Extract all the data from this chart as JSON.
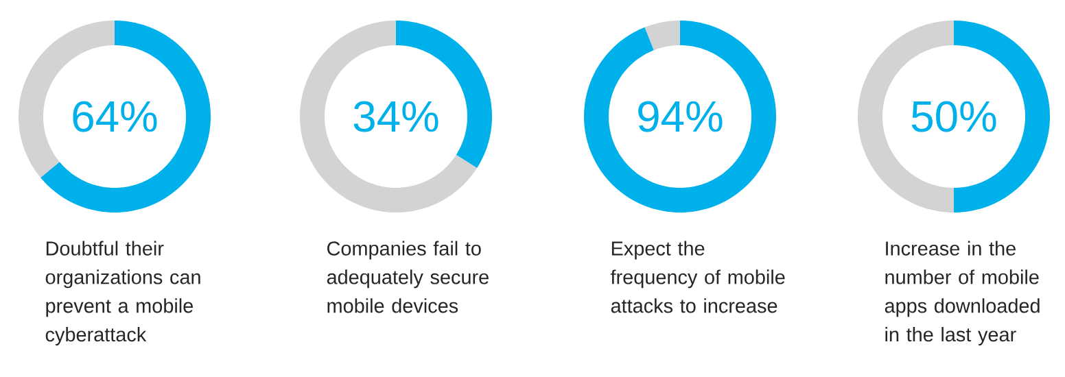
{
  "chart_data": [
    {
      "type": "donut",
      "categories": [
        null,
        null
      ],
      "values": [
        64,
        36
      ],
      "colors": [
        "#00b0ea",
        "#d3d3d3"
      ],
      "value_labels": [
        "64%",
        null
      ],
      "annotations": [
        "Doubtful their organizations can prevent a mobile cyberattack"
      ]
    },
    {
      "type": "donut",
      "categories": [
        null,
        null
      ],
      "values": [
        34,
        66
      ],
      "colors": [
        "#00b0ea",
        "#d3d3d3"
      ],
      "value_labels": [
        "34%",
        null
      ],
      "annotations": [
        "Companies fail to adequately secure mobile devices"
      ]
    },
    {
      "type": "donut",
      "categories": [
        null,
        null
      ],
      "values": [
        94,
        6
      ],
      "colors": [
        "#00b0ea",
        "#d3d3d3"
      ],
      "value_labels": [
        "94%",
        null
      ],
      "annotations": [
        "Expect the frequency of mobile attacks to increase"
      ]
    },
    {
      "type": "donut",
      "categories": [
        null,
        null
      ],
      "values": [
        50,
        50
      ],
      "colors": [
        "#00b0ea",
        "#d3d3d3"
      ],
      "value_labels": [
        "50%",
        null
      ],
      "annotations": [
        "Increase in the number of mobile apps downloaded in the last year"
      ]
    }
  ]
}
